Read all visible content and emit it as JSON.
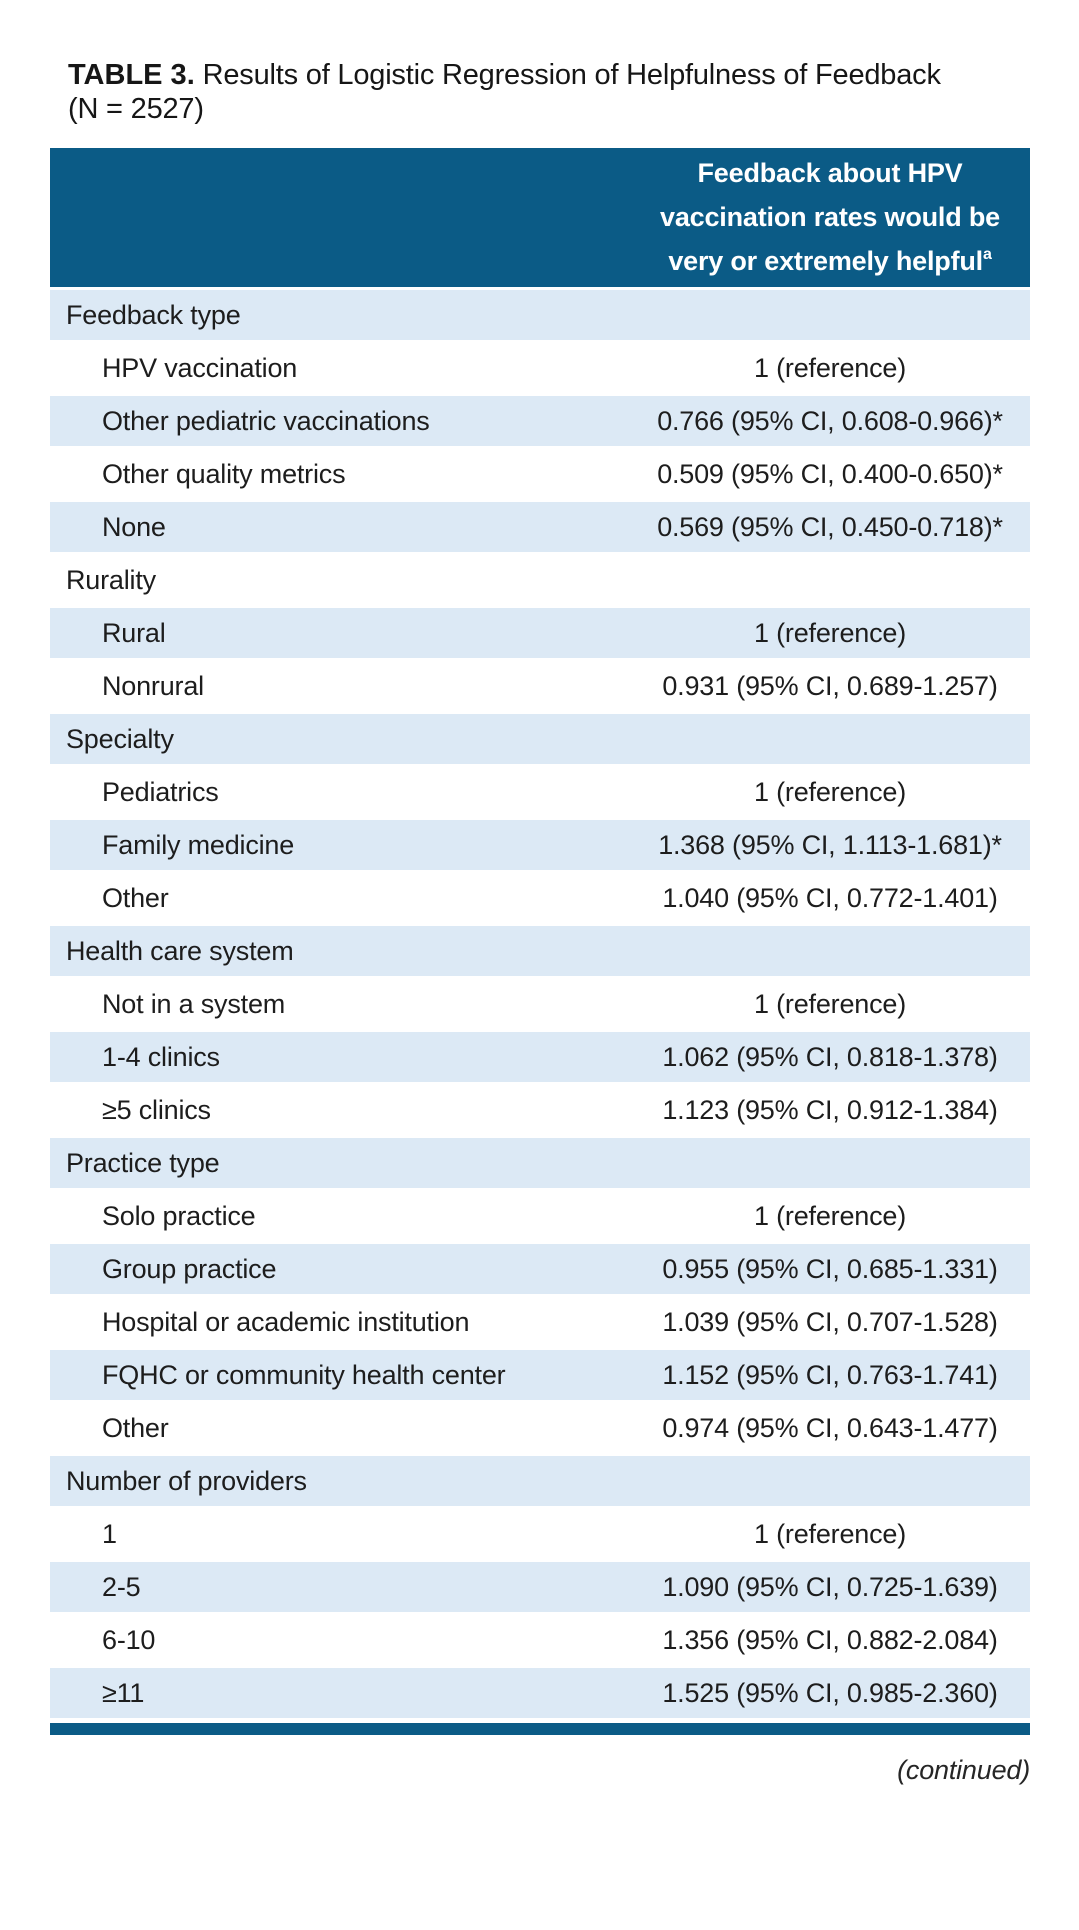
{
  "title": {
    "label": "TABLE 3.",
    "text": " Results of Logistic Regression of Helpfulness of Feedback",
    "line2": "(N = 2527)"
  },
  "table": {
    "value_header": {
      "lines": [
        "Feedback about HPV",
        "vaccination rates would be",
        "very or extremely helpful"
      ],
      "footnote_mark": "a"
    },
    "rows": [
      {
        "label": "Feedback type",
        "value": "",
        "type": "section"
      },
      {
        "label": "HPV vaccination",
        "value": "1 (reference)",
        "type": "item"
      },
      {
        "label": "Other pediatric vaccinations",
        "value": "0.766 (95% CI, 0.608-0.966)*",
        "type": "item"
      },
      {
        "label": "Other quality metrics",
        "value": "0.509 (95% CI, 0.400-0.650)*",
        "type": "item"
      },
      {
        "label": "None",
        "value": "0.569 (95% CI, 0.450-0.718)*",
        "type": "item"
      },
      {
        "label": "Rurality",
        "value": "",
        "type": "section"
      },
      {
        "label": "Rural",
        "value": "1 (reference)",
        "type": "item"
      },
      {
        "label": "Nonrural",
        "value": "0.931 (95% CI, 0.689-1.257)",
        "type": "item"
      },
      {
        "label": "Specialty",
        "value": "",
        "type": "section"
      },
      {
        "label": "Pediatrics",
        "value": "1 (reference)",
        "type": "item"
      },
      {
        "label": "Family medicine",
        "value": "1.368 (95% CI, 1.113-1.681)*",
        "type": "item"
      },
      {
        "label": "Other",
        "value": "1.040 (95% CI, 0.772-1.401)",
        "type": "item"
      },
      {
        "label": "Health care system",
        "value": "",
        "type": "section"
      },
      {
        "label": "Not in a system",
        "value": "1 (reference)",
        "type": "item"
      },
      {
        "label": "1-4 clinics",
        "value": "1.062 (95% CI, 0.818-1.378)",
        "type": "item"
      },
      {
        "label": "≥5 clinics",
        "value": "1.123 (95% CI, 0.912-1.384)",
        "type": "item"
      },
      {
        "label": "Practice type",
        "value": "",
        "type": "section"
      },
      {
        "label": "Solo practice",
        "value": "1 (reference)",
        "type": "item"
      },
      {
        "label": "Group practice",
        "value": "0.955 (95% CI, 0.685-1.331)",
        "type": "item"
      },
      {
        "label": "Hospital or academic institution",
        "value": "1.039 (95% CI, 0.707-1.528)",
        "type": "item"
      },
      {
        "label": "FQHC or community health center",
        "value": "1.152 (95% CI, 0.763-1.741)",
        "type": "item"
      },
      {
        "label": "Other",
        "value": "0.974 (95% CI, 0.643-1.477)",
        "type": "item"
      },
      {
        "label": "Number of providers",
        "value": "",
        "type": "section"
      },
      {
        "label": "1",
        "value": "1 (reference)",
        "type": "item"
      },
      {
        "label": "2-5",
        "value": "1.090 (95% CI, 0.725-1.639)",
        "type": "item"
      },
      {
        "label": "6-10",
        "value": "1.356 (95% CI, 0.882-2.084)",
        "type": "item"
      },
      {
        "label": "≥11",
        "value": "1.525 (95% CI, 0.985-2.360)",
        "type": "item"
      }
    ]
  },
  "footer": {
    "continued": "(continued)"
  },
  "colors": {
    "header_bg": "#0b5b86",
    "stripe_bg": "#dce9f5",
    "accent_bar": "#0b5b86",
    "text": "#1d1d1d"
  }
}
